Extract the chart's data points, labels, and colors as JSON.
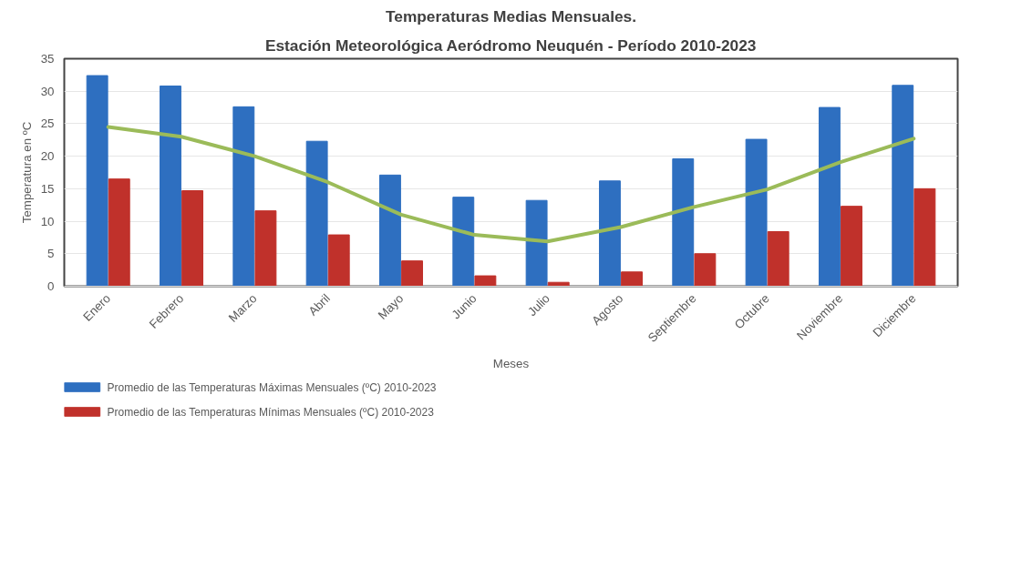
{
  "chart_data": {
    "type": "bar",
    "title": "Temperaturas Medias Mensuales.",
    "subtitle": "Estación Meteorológica Aeródromo Neuquén - Período 2010-2023",
    "xlabel": "Meses",
    "ylabel": "Temperatura en ºC",
    "categories": [
      "Enero",
      "Febrero",
      "Marzo",
      "Abril",
      "Mayo",
      "Junio",
      "Julio",
      "Agosto",
      "Septiembre",
      "Octubre",
      "Noviembre",
      "Diciembre"
    ],
    "series": [
      {
        "name": "Promedio de las Temperaturas Máximas Mensuales (ºC)  2010-2023",
        "color": "#2e6fc0",
        "values": [
          32.4,
          30.8,
          27.6,
          22.3,
          17.1,
          13.7,
          13.2,
          16.2,
          19.6,
          22.6,
          27.5,
          30.9
        ]
      },
      {
        "name": "Promedio de las Temperaturas Mínimas Mensuales (ºC)  2010-2023",
        "color": "#c0312b",
        "values": [
          16.5,
          14.7,
          11.6,
          7.9,
          3.9,
          1.6,
          0.6,
          2.2,
          5.0,
          8.4,
          12.3,
          15.0
        ]
      },
      {
        "type": "line",
        "color": "#9bbb59",
        "values": [
          24.5,
          23.0,
          20.0,
          16.0,
          11.0,
          7.9,
          6.9,
          9.1,
          12.2,
          14.9,
          19.1,
          22.7
        ]
      }
    ],
    "ylim": [
      0,
      35
    ],
    "yticks": [
      0,
      5,
      10,
      15,
      20,
      25,
      30,
      35
    ],
    "grid": "y",
    "legend": "bottom left",
    "line_style": "solid",
    "marker": "none"
  }
}
